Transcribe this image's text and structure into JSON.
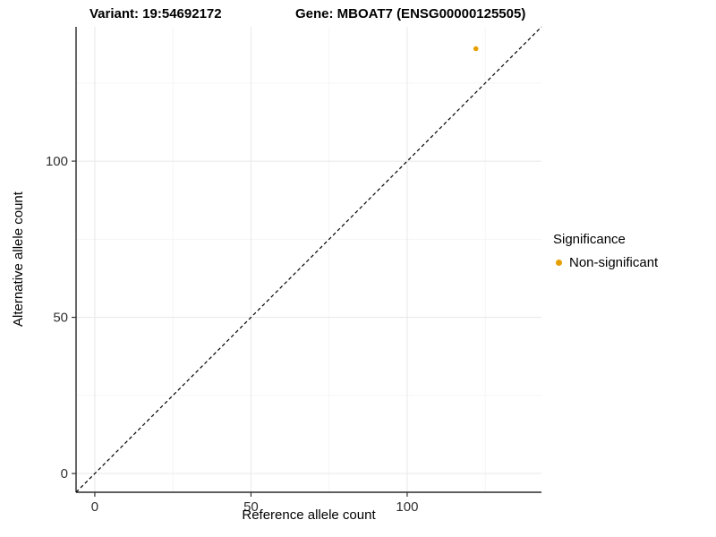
{
  "title": {
    "variant": "Variant: 19:54692172",
    "gene": "Gene: MBOAT7 (ENSG00000125505)"
  },
  "axes": {
    "x_label": "Reference allele count",
    "y_label": "Alternative allele count"
  },
  "legend": {
    "title": "Significance",
    "entries": [
      {
        "label": "Non-significant",
        "color": "#E69F00"
      }
    ]
  },
  "chart_data": {
    "type": "scatter",
    "title": "Variant: 19:54692172   Gene: MBOAT7 (ENSG00000125505)",
    "xlabel": "Reference allele count",
    "ylabel": "Alternative allele count",
    "xlim": [
      -6,
      143
    ],
    "ylim": [
      -6,
      143
    ],
    "x_ticks": [
      0,
      50,
      100
    ],
    "y_ticks": [
      0,
      50,
      100
    ],
    "minor_ticks": [
      25,
      75,
      125
    ],
    "grid": "major+minor",
    "grid_color": "#e8e8e8",
    "grid_minor_color": "#f5f5f5",
    "background": "#ffffff",
    "axis_line_color": "#000000",
    "tick_label_color": "#303030",
    "series": [
      {
        "name": "Non-significant",
        "color": "#E69F00",
        "points": [
          [
            122,
            136
          ]
        ]
      }
    ],
    "identity_line": {
      "type": "identity",
      "style": "dashed",
      "color": "#000000",
      "from": [
        -6,
        -6
      ],
      "to": [
        143,
        143
      ]
    },
    "legend_position": "right"
  }
}
